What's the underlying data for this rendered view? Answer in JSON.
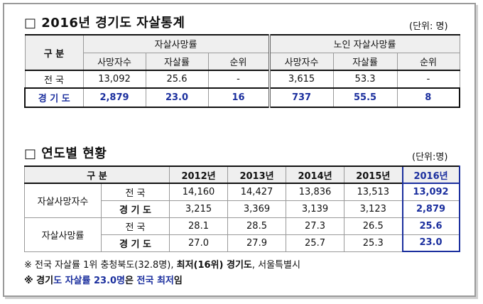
{
  "section1": {
    "title": "□ 2016년 경기도 자살통계",
    "unit": "(단위: 명)",
    "header": {
      "category": "구  분",
      "group1": "자살사망률",
      "group2": "노인 자살사망률",
      "sub": [
        "사망자수",
        "자살률",
        "순위",
        "사망자수",
        "자살률",
        "순위"
      ]
    },
    "rows": [
      {
        "label": "전  국",
        "values": [
          "13,092",
          "25.6",
          "-",
          "3,615",
          "53.3",
          "-"
        ]
      },
      {
        "label": "경 기 도",
        "values": [
          "2,879",
          "23.0",
          "16",
          "737",
          "55.5",
          "8"
        ]
      }
    ]
  },
  "section2": {
    "title": "□ 연도별 현황",
    "unit": "(단위:명)",
    "header": {
      "category": "구  분",
      "years": [
        "2012년",
        "2013년",
        "2014년",
        "2015년",
        "2016년"
      ]
    },
    "groups": [
      {
        "label": "자살사망자수",
        "rows": [
          {
            "label": "전  국",
            "values": [
              "14,160",
              "14,427",
              "13,836",
              "13,513",
              "13,092"
            ]
          },
          {
            "label": "경 기 도",
            "values": [
              "3,215",
              "3,369",
              "3,139",
              "3,123",
              "2,879"
            ]
          }
        ]
      },
      {
        "label": "자살사망률",
        "rows": [
          {
            "label": "전  국",
            "values": [
              "28.1",
              "28.5",
              "27.3",
              "26.5",
              "25.6"
            ]
          },
          {
            "label": "경 기 도",
            "values": [
              "27.0",
              "27.9",
              "25.7",
              "25.3",
              "23.0"
            ]
          }
        ]
      }
    ]
  },
  "notes": {
    "n1_a": "※ 전국 자살률 1위 충청북도(32.8명), ",
    "n1_b": "최저(16위) 경기도",
    "n1_c": ", 서울특별시",
    "n2_a": "※ 경기",
    "n2_b": "도 자살률 23.0명",
    "n2_c": "은 ",
    "n2_d": "전국 최저",
    "n2_e": "임"
  }
}
